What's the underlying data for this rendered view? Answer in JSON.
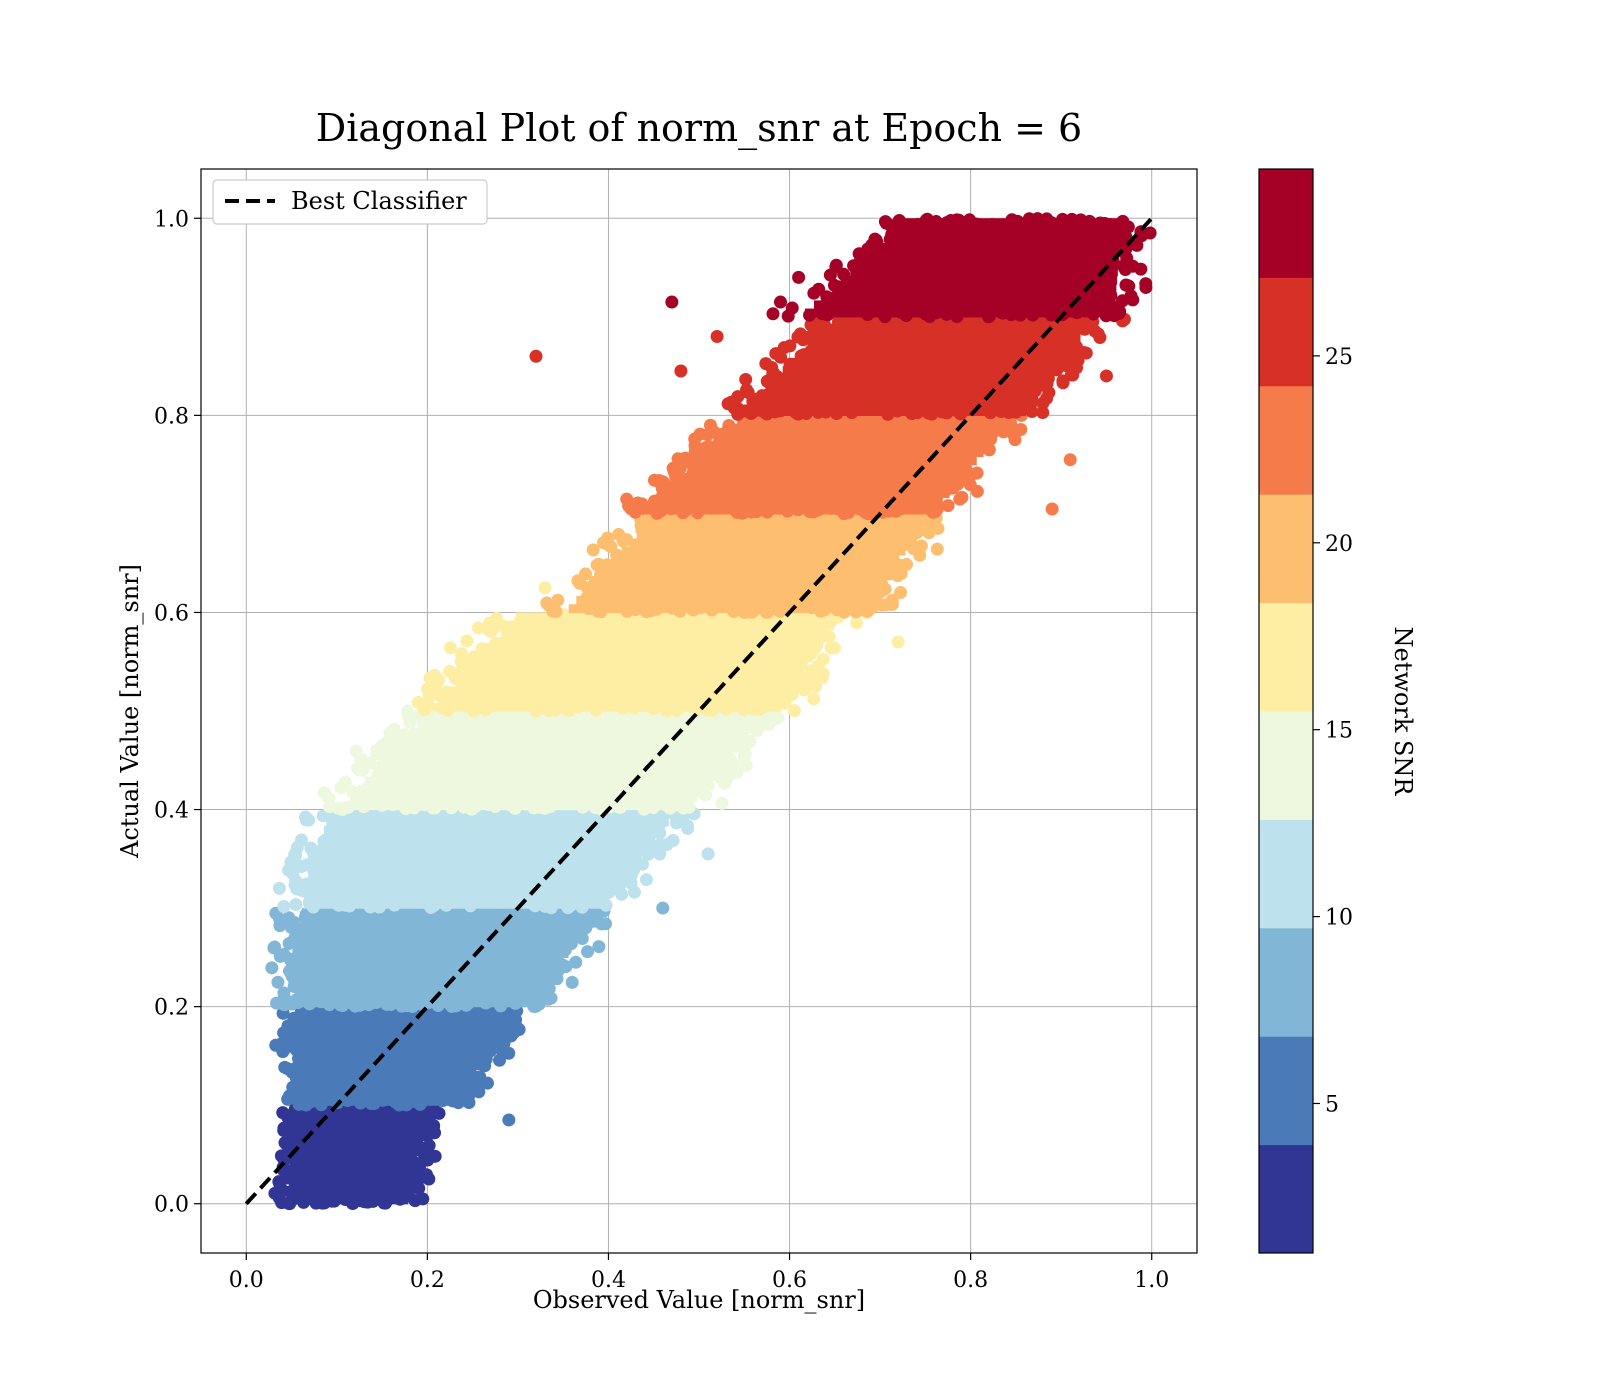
{
  "chart_data": {
    "type": "scatter",
    "title": "Diagonal Plot of norm_snr at Epoch = 6",
    "xlabel": "Observed Value [norm_snr]",
    "ylabel": "Actual Value [norm_snr]",
    "xlim": [
      -0.05,
      1.05
    ],
    "ylim": [
      -0.05,
      1.05
    ],
    "xticks": [
      "0.0",
      "0.2",
      "0.4",
      "0.6",
      "0.8",
      "1.0"
    ],
    "yticks": [
      "0.0",
      "0.2",
      "0.4",
      "0.6",
      "0.8",
      "1.0"
    ],
    "grid": true,
    "legend": {
      "position": "top-left",
      "entries": [
        "Best Classifier"
      ]
    },
    "reference_line": {
      "label": "Best Classifier",
      "style": "dashed",
      "color": "#000000",
      "from": [
        0,
        0
      ],
      "to": [
        1,
        1
      ]
    },
    "colorbar": {
      "label": "Network SNR",
      "range": [
        1,
        30
      ],
      "ticks": [
        "5",
        "10",
        "15",
        "20",
        "25"
      ],
      "colors": [
        "#313695",
        "#4a7ab7",
        "#82b6d7",
        "#bde1ed",
        "#edf8df",
        "#feeea4",
        "#fdbe70",
        "#f67b4b",
        "#d73027",
        "#a50026"
      ]
    },
    "bands": [
      {
        "y_range": [
          0.0,
          0.1
        ],
        "x_range_low": [
          0.04,
          0.05
        ],
        "x_range_high": [
          0.19,
          0.21
        ],
        "color_index": 0
      },
      {
        "y_range": [
          0.1,
          0.2
        ],
        "x_range_low": [
          0.04,
          0.05
        ],
        "x_range_high": [
          0.24,
          0.31
        ],
        "color_index": 1
      },
      {
        "y_range": [
          0.2,
          0.3
        ],
        "x_range_low": [
          0.04,
          0.05
        ],
        "x_range_high": [
          0.33,
          0.4
        ],
        "color_index": 2
      },
      {
        "y_range": [
          0.3,
          0.4
        ],
        "x_range_low": [
          0.05,
          0.08
        ],
        "x_range_high": [
          0.4,
          0.49
        ],
        "color_index": 3
      },
      {
        "y_range": [
          0.4,
          0.5
        ],
        "x_range_low": [
          0.09,
          0.19
        ],
        "x_range_high": [
          0.5,
          0.58
        ],
        "color_index": 4
      },
      {
        "y_range": [
          0.5,
          0.6
        ],
        "x_range_low": [
          0.19,
          0.29
        ],
        "x_range_high": [
          0.6,
          0.67
        ],
        "color_index": 5
      },
      {
        "y_range": [
          0.6,
          0.7
        ],
        "x_range_low": [
          0.34,
          0.44
        ],
        "x_range_high": [
          0.69,
          0.77
        ],
        "color_index": 6
      },
      {
        "y_range": [
          0.7,
          0.8
        ],
        "x_range_low": [
          0.42,
          0.54
        ],
        "x_range_high": [
          0.77,
          0.86
        ],
        "color_index": 7
      },
      {
        "y_range": [
          0.8,
          0.9
        ],
        "x_range_low": [
          0.53,
          0.64
        ],
        "x_range_high": [
          0.87,
          0.95
        ],
        "color_index": 8
      },
      {
        "y_range": [
          0.9,
          1.0
        ],
        "x_range_low": [
          0.6,
          0.72
        ],
        "x_range_high": [
          0.97,
          0.98
        ],
        "color_index": 9
      }
    ],
    "outliers": [
      {
        "x": 0.32,
        "y": 0.86,
        "color_index": 8
      },
      {
        "x": 0.47,
        "y": 0.915,
        "color_index": 9
      },
      {
        "x": 0.59,
        "y": 0.915,
        "color_index": 9
      },
      {
        "x": 0.61,
        "y": 0.94,
        "color_index": 9
      },
      {
        "x": 0.52,
        "y": 0.88,
        "color_index": 8
      },
      {
        "x": 0.48,
        "y": 0.845,
        "color_index": 8
      },
      {
        "x": 0.29,
        "y": 0.085,
        "color_index": 1
      },
      {
        "x": 0.46,
        "y": 0.3,
        "color_index": 2
      },
      {
        "x": 0.51,
        "y": 0.355,
        "color_index": 3
      },
      {
        "x": 0.89,
        "y": 0.705,
        "color_index": 7
      },
      {
        "x": 0.91,
        "y": 0.755,
        "color_index": 7
      },
      {
        "x": 0.95,
        "y": 0.84,
        "color_index": 8
      },
      {
        "x": 0.72,
        "y": 0.57,
        "color_index": 5
      },
      {
        "x": 0.73,
        "y": 0.99,
        "color_index": 9
      },
      {
        "x": 0.33,
        "y": 0.625,
        "color_index": 5
      }
    ]
  }
}
